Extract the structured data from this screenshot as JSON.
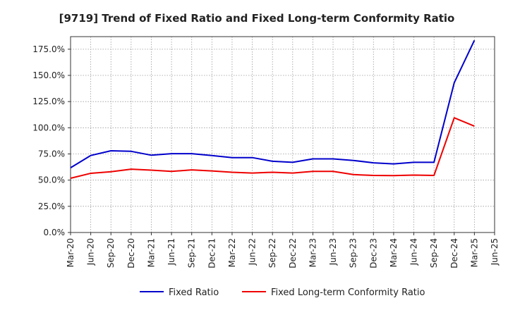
{
  "chart_data": {
    "type": "line",
    "title": "[9719]  Trend of Fixed Ratio and Fixed Long-term Conformity Ratio",
    "xlabel": "",
    "ylabel": "",
    "x_tick_labels": [
      "Mar-20",
      "Jun-20",
      "Sep-20",
      "Dec-20",
      "Mar-21",
      "Jun-21",
      "Sep-21",
      "Dec-21",
      "Mar-22",
      "Jun-22",
      "Sep-22",
      "Dec-22",
      "Mar-23",
      "Jun-23",
      "Sep-23",
      "Dec-23",
      "Mar-24",
      "Jun-24",
      "Sep-24",
      "Dec-24",
      "Mar-25",
      "Jun-25"
    ],
    "y_tick_labels": [
      "0.0%",
      "25.0%",
      "50.0%",
      "75.0%",
      "100.0%",
      "125.0%",
      "150.0%",
      "175.0%"
    ],
    "y_ticks": [
      0,
      25,
      50,
      75,
      100,
      125,
      150,
      175
    ],
    "ylim": [
      0,
      187
    ],
    "grid": true,
    "legend_position": "bottom",
    "series": [
      {
        "name": "Fixed Ratio",
        "color": "#0000cc",
        "values": [
          61.8,
          73.5,
          78.0,
          77.5,
          73.8,
          75.3,
          75.3,
          73.5,
          71.5,
          71.5,
          68.0,
          67.0,
          70.3,
          70.3,
          68.8,
          66.5,
          65.5,
          67.0,
          67.0,
          143.0,
          183.5
        ]
      },
      {
        "name": "Fixed Long-term Conformity Ratio",
        "color": "#ee0000",
        "values": [
          51.8,
          56.5,
          58.0,
          60.5,
          59.5,
          58.3,
          59.8,
          58.8,
          57.5,
          56.8,
          57.5,
          56.8,
          58.3,
          58.3,
          55.3,
          54.5,
          54.3,
          54.8,
          54.5,
          109.5,
          101.5
        ]
      }
    ]
  }
}
